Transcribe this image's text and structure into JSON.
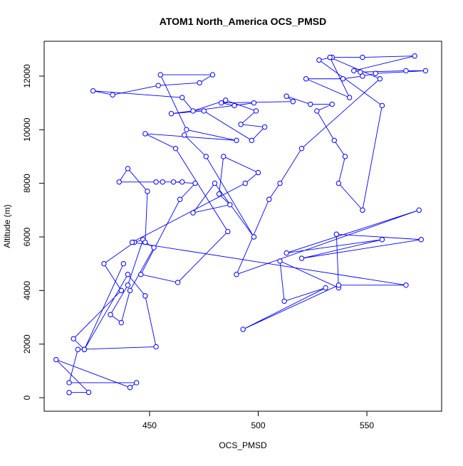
{
  "chart_data": {
    "type": "line-points",
    "title": "ATOM1 North_America OCS_PMSD",
    "x_label": "OCS_PMSD",
    "y_label": "Altitude (m)",
    "color": "#0000ff",
    "x": [
      413,
      422,
      407,
      441,
      444,
      413,
      417,
      453,
      448,
      440,
      420,
      438,
      420,
      415,
      437,
      429,
      443,
      447,
      440,
      432,
      437,
      441,
      452,
      448,
      449,
      440,
      436,
      453,
      465,
      456,
      461,
      471,
      464,
      446,
      463,
      486,
      462,
      448,
      490,
      467,
      455,
      479,
      473,
      454,
      433,
      424,
      465,
      470,
      485,
      499,
      492,
      503,
      497,
      475,
      460,
      498,
      489,
      483,
      516,
      513,
      524,
      534,
      527,
      535,
      540,
      537,
      548,
      557,
      528,
      534,
      548,
      572,
      544,
      547,
      568,
      577,
      554,
      548,
      539,
      522,
      542,
      533,
      556,
      520,
      510,
      505,
      490,
      574,
      513,
      557,
      520,
      575,
      536,
      537,
      510,
      512,
      531,
      493,
      537,
      568,
      442,
      494,
      500,
      484,
      482,
      487,
      470,
      480,
      498,
      476,
      466
    ],
    "values": [
      190,
      200,
      1420,
      380,
      560,
      560,
      1800,
      1900,
      3800,
      4600,
      1800,
      5000,
      1800,
      2200,
      4000,
      5000,
      5800,
      5900,
      4200,
      3100,
      2800,
      4000,
      5600,
      5800,
      7700,
      8550,
      8050,
      8050,
      8050,
      8050,
      8050,
      8000,
      7400,
      4600,
      4300,
      6200,
      9300,
      9850,
      9600,
      10000,
      12050,
      12050,
      11750,
      11650,
      11300,
      11450,
      11200,
      10700,
      11100,
      10700,
      10200,
      10100,
      9600,
      10700,
      10600,
      11000,
      10900,
      11000,
      11050,
      11250,
      10950,
      10950,
      10700,
      9600,
      9000,
      8000,
      7000,
      10900,
      12600,
      12700,
      12700,
      12750,
      12200,
      12150,
      12200,
      12200,
      12100,
      12000,
      11900,
      11900,
      11200,
      12700,
      11900,
      9300,
      8000,
      7400,
      4600,
      7000,
      5400,
      5900,
      5200,
      5900,
      6100,
      4100,
      5100,
      3600,
      4100,
      2550,
      4200,
      4200,
      5800,
      8000,
      8400,
      9000,
      7600,
      7200,
      6900,
      8000,
      6000,
      9000,
      9800
    ],
    "xlim": [
      401.5,
      584.4
    ],
    "ylim": [
      -504,
      13300
    ],
    "xticks": [
      450,
      500,
      550
    ],
    "yticks": [
      0,
      2000,
      4000,
      6000,
      8000,
      10000,
      12000
    ]
  }
}
